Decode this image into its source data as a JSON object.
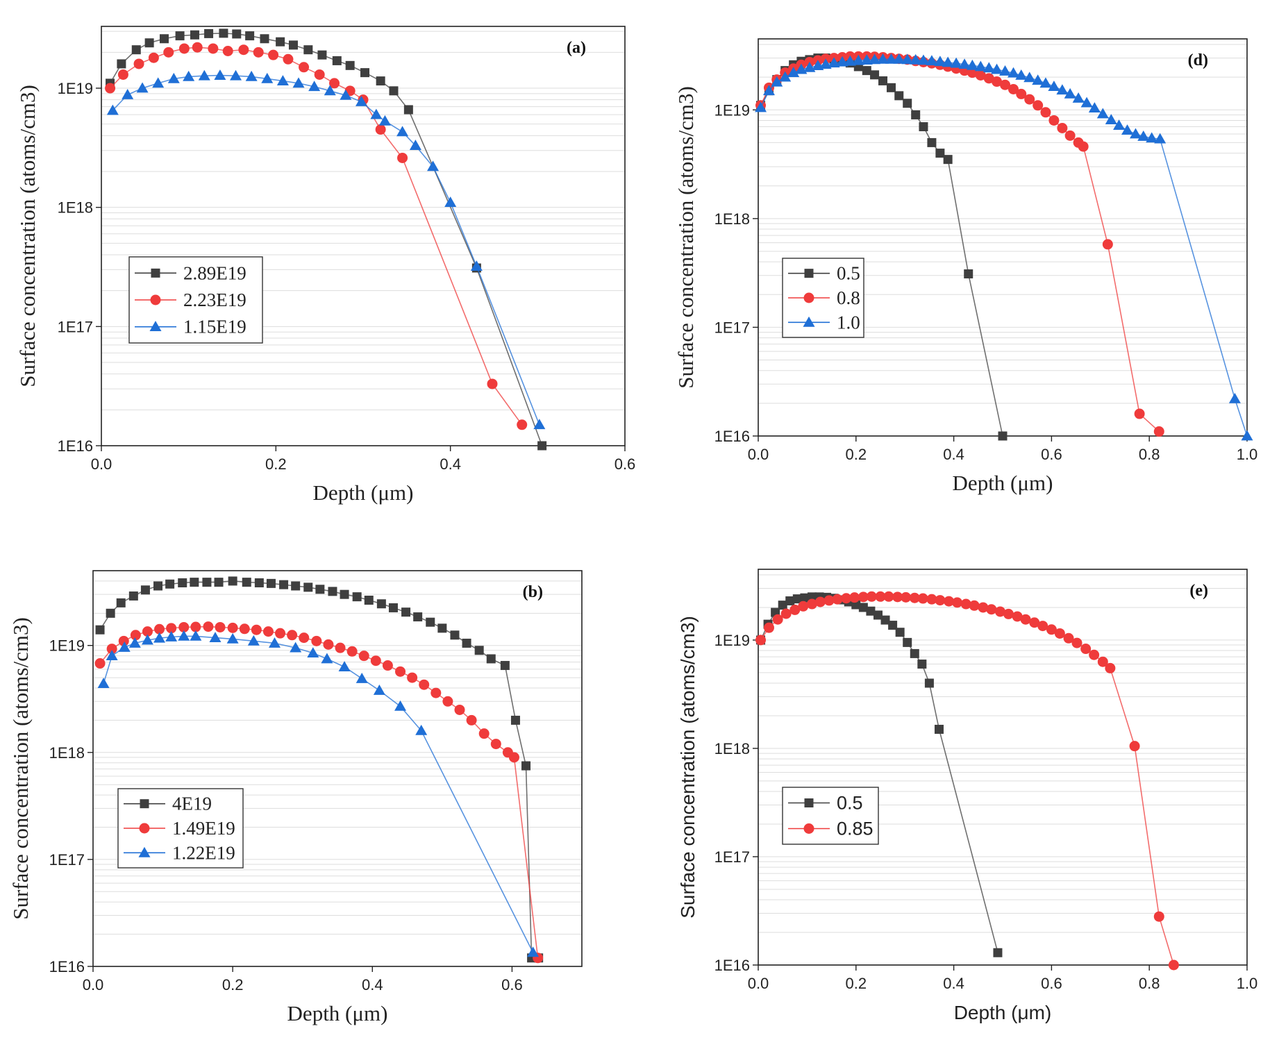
{
  "chart_data": [
    {
      "id": "a",
      "type": "line",
      "panel_label": "(a)",
      "xlabel": "Depth (μm)",
      "ylabel": "Surface concentration (atoms/cm3)",
      "xlim": [
        0.0,
        0.6
      ],
      "ylim": [
        1e+16,
        3.3e+19
      ],
      "yscale": "log",
      "xticks": [
        "0.0",
        "0.2",
        "0.4",
        "0.6"
      ],
      "yticks": [
        "1E16",
        "1E17",
        "1E18",
        "1E19"
      ],
      "legend_position": "center-left",
      "series": [
        {
          "name": "2.89E19",
          "color": "#3f3f3f",
          "marker": "square",
          "x": [
            0.01,
            0.023,
            0.04,
            0.055,
            0.072,
            0.09,
            0.107,
            0.123,
            0.14,
            0.155,
            0.17,
            0.187,
            0.205,
            0.22,
            0.237,
            0.253,
            0.27,
            0.285,
            0.302,
            0.32,
            0.335,
            0.352,
            0.43,
            0.505
          ],
          "y": [
            1.1e+19,
            1.6e+19,
            2.1e+19,
            2.4e+19,
            2.6e+19,
            2.75e+19,
            2.8e+19,
            2.87e+19,
            2.89e+19,
            2.85e+19,
            2.75e+19,
            2.6e+19,
            2.45e+19,
            2.3e+19,
            2.1e+19,
            1.9e+19,
            1.7e+19,
            1.55e+19,
            1.35e+19,
            1.15e+19,
            9.5e+18,
            6.6e+18,
            3.1e+17,
            1e+16
          ]
        },
        {
          "name": "2.23E19",
          "color": "#ef3b3b",
          "marker": "circle",
          "x": [
            0.01,
            0.025,
            0.043,
            0.06,
            0.077,
            0.095,
            0.11,
            0.128,
            0.145,
            0.163,
            0.18,
            0.197,
            0.214,
            0.232,
            0.25,
            0.267,
            0.285,
            0.3,
            0.32,
            0.345,
            0.448,
            0.482
          ],
          "y": [
            1e+19,
            1.3e+19,
            1.6e+19,
            1.8e+19,
            2e+19,
            2.15e+19,
            2.2e+19,
            2.15e+19,
            2.05e+19,
            2.1e+19,
            2e+19,
            1.9e+19,
            1.75e+19,
            1.5e+19,
            1.3e+19,
            1.1e+19,
            9.5e+18,
            8e+18,
            4.5e+18,
            2.6e+18,
            3.3e+16,
            1.5e+16
          ]
        },
        {
          "name": "1.15E19",
          "color": "#1f6fd6",
          "marker": "triangle",
          "x": [
            0.013,
            0.03,
            0.047,
            0.065,
            0.083,
            0.1,
            0.118,
            0.136,
            0.154,
            0.172,
            0.19,
            0.208,
            0.226,
            0.244,
            0.262,
            0.28,
            0.298,
            0.315,
            0.325,
            0.345,
            0.36,
            0.38,
            0.4,
            0.43,
            0.502
          ],
          "y": [
            6.5e+18,
            8.8e+18,
            1e+19,
            1.1e+19,
            1.2e+19,
            1.25e+19,
            1.27e+19,
            1.28e+19,
            1.27e+19,
            1.25e+19,
            1.2e+19,
            1.15e+19,
            1.1e+19,
            1.03e+19,
            9.5e+18,
            8.7e+18,
            7.7e+18,
            6e+18,
            5.3e+18,
            4.3e+18,
            3.3e+18,
            2.2e+18,
            1.1e+18,
            3.2e+17,
            1.5e+16
          ]
        }
      ]
    },
    {
      "id": "d",
      "type": "line",
      "panel_label": "(d)",
      "xlabel": "Depth (μm)",
      "ylabel": "Surface concentration (atoms/cm3)",
      "xlim": [
        0.0,
        1.0
      ],
      "ylim": [
        1e+16,
        4.5e+19
      ],
      "yscale": "log",
      "xticks": [
        "0.0",
        "0.2",
        "0.4",
        "0.6",
        "0.8",
        "1.0"
      ],
      "yticks": [
        "1E16",
        "1E17",
        "1E18",
        "1E19"
      ],
      "legend_position": "center-left",
      "series": [
        {
          "name": "0.5",
          "color": "#3f3f3f",
          "marker": "square",
          "x": [
            0.005,
            0.022,
            0.038,
            0.055,
            0.072,
            0.088,
            0.105,
            0.122,
            0.138,
            0.155,
            0.172,
            0.188,
            0.205,
            0.222,
            0.238,
            0.255,
            0.272,
            0.288,
            0.305,
            0.322,
            0.338,
            0.355,
            0.372,
            0.388,
            0.43,
            0.5
          ],
          "y": [
            1.1e+19,
            1.5e+19,
            1.9e+19,
            2.3e+19,
            2.6e+19,
            2.8e+19,
            2.9e+19,
            3e+19,
            3e+19,
            2.95e+19,
            2.85e+19,
            2.7e+19,
            2.5e+19,
            2.3e+19,
            2.1e+19,
            1.85e+19,
            1.6e+19,
            1.35e+19,
            1.15e+19,
            9e+18,
            7e+18,
            5e+18,
            4e+18,
            3.5e+18,
            3.1e+17,
            1e+16
          ]
        },
        {
          "name": "0.8",
          "color": "#ef3b3b",
          "marker": "circle",
          "x": [
            0.005,
            0.022,
            0.038,
            0.055,
            0.072,
            0.088,
            0.105,
            0.122,
            0.138,
            0.155,
            0.172,
            0.188,
            0.205,
            0.222,
            0.238,
            0.255,
            0.272,
            0.288,
            0.305,
            0.322,
            0.338,
            0.355,
            0.372,
            0.388,
            0.405,
            0.422,
            0.438,
            0.455,
            0.472,
            0.488,
            0.505,
            0.522,
            0.538,
            0.555,
            0.572,
            0.588,
            0.605,
            0.622,
            0.638,
            0.655,
            0.665,
            0.715,
            0.78,
            0.82
          ],
          "y": [
            1.1e+19,
            1.6e+19,
            1.9e+19,
            2.2e+19,
            2.4e+19,
            2.6e+19,
            2.75e+19,
            2.85e+19,
            2.95e+19,
            3e+19,
            3.05e+19,
            3.1e+19,
            3.1e+19,
            3.1e+19,
            3.08e+19,
            3.05e+19,
            3e+19,
            2.95e+19,
            2.9e+19,
            2.82e+19,
            2.75e+19,
            2.68e+19,
            2.6e+19,
            2.5e+19,
            2.4e+19,
            2.3e+19,
            2.2e+19,
            2.08e+19,
            1.95e+19,
            1.82e+19,
            1.7e+19,
            1.55e+19,
            1.4e+19,
            1.25e+19,
            1.1e+19,
            9.5e+18,
            8e+18,
            6.8e+18,
            5.8e+18,
            5e+18,
            4.6e+18,
            5.8e+17,
            1.6e+16,
            1.1e+16
          ]
        },
        {
          "name": "1.0",
          "color": "#1f6fd6",
          "marker": "triangle",
          "x": [
            0.005,
            0.022,
            0.038,
            0.055,
            0.072,
            0.088,
            0.105,
            0.122,
            0.138,
            0.155,
            0.172,
            0.188,
            0.205,
            0.222,
            0.238,
            0.255,
            0.272,
            0.288,
            0.305,
            0.322,
            0.338,
            0.355,
            0.372,
            0.388,
            0.405,
            0.422,
            0.438,
            0.455,
            0.472,
            0.488,
            0.505,
            0.522,
            0.538,
            0.555,
            0.572,
            0.588,
            0.605,
            0.622,
            0.638,
            0.655,
            0.672,
            0.688,
            0.705,
            0.722,
            0.738,
            0.755,
            0.772,
            0.788,
            0.805,
            0.822,
            0.975,
            1.0
          ],
          "y": [
            1.05e+19,
            1.5e+19,
            1.8e+19,
            2e+19,
            2.2e+19,
            2.35e+19,
            2.45e+19,
            2.55e+19,
            2.62e+19,
            2.7e+19,
            2.76e+19,
            2.8e+19,
            2.84e+19,
            2.87e+19,
            2.9e+19,
            2.92e+19,
            2.92e+19,
            2.92e+19,
            2.9e+19,
            2.88e+19,
            2.85e+19,
            2.82e+19,
            2.78e+19,
            2.73e+19,
            2.68e+19,
            2.62e+19,
            2.56e+19,
            2.5e+19,
            2.43e+19,
            2.35e+19,
            2.27e+19,
            2.18e+19,
            2.08e+19,
            1.98e+19,
            1.87e+19,
            1.76e+19,
            1.64e+19,
            1.52e+19,
            1.4e+19,
            1.28e+19,
            1.16e+19,
            1.04e+19,
            9.2e+18,
            8.1e+18,
            7.2e+18,
            6.5e+18,
            6e+18,
            5.7e+18,
            5.5e+18,
            5.4e+18,
            2.2e+16,
            1e+16
          ]
        }
      ]
    },
    {
      "id": "b",
      "type": "line",
      "panel_label": "(b)",
      "xlabel": "Depth (μm)",
      "ylabel": "Surface concentration (atoms/cm3)",
      "xlim": [
        0.0,
        0.7
      ],
      "ylim": [
        1e+16,
        5e+19
      ],
      "yscale": "log",
      "xticks": [
        "0.0",
        "0.2",
        "0.4",
        "0.6"
      ],
      "yticks": [
        "1E16",
        "1E17",
        "1E18",
        "1E19"
      ],
      "legend_position": "lower-left",
      "series": [
        {
          "name": "4E19",
          "color": "#3f3f3f",
          "marker": "square",
          "x": [
            0.01,
            0.025,
            0.04,
            0.058,
            0.075,
            0.093,
            0.11,
            0.128,
            0.145,
            0.163,
            0.18,
            0.2,
            0.22,
            0.238,
            0.255,
            0.273,
            0.29,
            0.308,
            0.325,
            0.343,
            0.36,
            0.378,
            0.395,
            0.413,
            0.43,
            0.448,
            0.465,
            0.483,
            0.5,
            0.518,
            0.535,
            0.553,
            0.57,
            0.59,
            0.605,
            0.62,
            0.628,
            0.638
          ],
          "y": [
            1.4e+19,
            2e+19,
            2.5e+19,
            2.9e+19,
            3.3e+19,
            3.6e+19,
            3.75e+19,
            3.85e+19,
            3.9e+19,
            3.9e+19,
            3.9e+19,
            4e+19,
            3.9e+19,
            3.85e+19,
            3.8e+19,
            3.7e+19,
            3.6e+19,
            3.5e+19,
            3.35e+19,
            3.2e+19,
            3e+19,
            2.85e+19,
            2.65e+19,
            2.45e+19,
            2.25e+19,
            2.05e+19,
            1.85e+19,
            1.65e+19,
            1.45e+19,
            1.25e+19,
            1.05e+19,
            9e+18,
            7.5e+18,
            6.5e+18,
            2e+18,
            7.5e+17,
            1.2e+16,
            1.2e+16
          ]
        },
        {
          "name": "1.49E19",
          "color": "#ef3b3b",
          "marker": "circle",
          "x": [
            0.01,
            0.027,
            0.044,
            0.061,
            0.078,
            0.095,
            0.112,
            0.13,
            0.147,
            0.165,
            0.182,
            0.2,
            0.217,
            0.234,
            0.251,
            0.268,
            0.285,
            0.302,
            0.32,
            0.337,
            0.354,
            0.371,
            0.388,
            0.405,
            0.422,
            0.44,
            0.457,
            0.474,
            0.491,
            0.508,
            0.525,
            0.542,
            0.56,
            0.577,
            0.594,
            0.603,
            0.637
          ],
          "y": [
            6.8e+18,
            9.3e+18,
            1.1e+19,
            1.25e+19,
            1.35e+19,
            1.42e+19,
            1.45e+19,
            1.48e+19,
            1.49e+19,
            1.5e+19,
            1.48e+19,
            1.46e+19,
            1.43e+19,
            1.4e+19,
            1.35e+19,
            1.3e+19,
            1.25e+19,
            1.18e+19,
            1.1e+19,
            1.02e+19,
            9.5e+18,
            8.8e+18,
            8e+18,
            7.2e+18,
            6.5e+18,
            5.7e+18,
            5e+18,
            4.3e+18,
            3.6e+18,
            3e+18,
            2.5e+18,
            2e+18,
            1.5e+18,
            1.2e+18,
            1e+18,
            9e+17,
            1.2e+16
          ]
        },
        {
          "name": "1.22E19",
          "color": "#1f6fd6",
          "marker": "triangle",
          "x": [
            0.015,
            0.027,
            0.045,
            0.06,
            0.078,
            0.095,
            0.112,
            0.13,
            0.147,
            0.175,
            0.2,
            0.23,
            0.26,
            0.29,
            0.315,
            0.335,
            0.36,
            0.385,
            0.41,
            0.44,
            0.47,
            0.63
          ],
          "y": [
            4.4e+18,
            8e+18,
            9.6e+18,
            1.05e+19,
            1.12e+19,
            1.17e+19,
            1.2e+19,
            1.22e+19,
            1.22e+19,
            1.18e+19,
            1.15e+19,
            1.1e+19,
            1.05e+19,
            9.5e+18,
            8.5e+18,
            7.5e+18,
            6.3e+18,
            4.9e+18,
            3.8e+18,
            2.7e+18,
            1.6e+18,
            1.35e+16
          ]
        }
      ]
    },
    {
      "id": "e",
      "type": "line",
      "panel_label": "(e)",
      "xlabel": "Depth (μm)",
      "ylabel": "Surface concentration (atoms/cm3)",
      "xlim": [
        0.0,
        1.0
      ],
      "ylim": [
        1e+16,
        4.5e+19
      ],
      "yscale": "log",
      "xticks": [
        "0.0",
        "0.2",
        "0.4",
        "0.6",
        "0.8",
        "1.0"
      ],
      "yticks": [
        "1E16",
        "1E17",
        "1E18",
        "1E19"
      ],
      "legend_position": "center-left",
      "series": [
        {
          "name": "0.5",
          "color": "#3f3f3f",
          "marker": "square",
          "x": [
            0.005,
            0.02,
            0.035,
            0.05,
            0.065,
            0.08,
            0.095,
            0.11,
            0.125,
            0.14,
            0.155,
            0.17,
            0.185,
            0.2,
            0.215,
            0.23,
            0.245,
            0.26,
            0.275,
            0.29,
            0.305,
            0.32,
            0.335,
            0.35,
            0.37,
            0.49
          ],
          "y": [
            1e+19,
            1.4e+19,
            1.8e+19,
            2.1e+19,
            2.3e+19,
            2.4e+19,
            2.45e+19,
            2.5e+19,
            2.5e+19,
            2.48e+19,
            2.43e+19,
            2.35e+19,
            2.25e+19,
            2.12e+19,
            2e+19,
            1.85e+19,
            1.7e+19,
            1.53e+19,
            1.37e+19,
            1.18e+19,
            9.5e+18,
            7.5e+18,
            6e+18,
            4e+18,
            1.5e+18,
            1.3e+16
          ]
        },
        {
          "name": "0.85",
          "color": "#ef3b3b",
          "marker": "circle",
          "x": [
            0.005,
            0.022,
            0.04,
            0.057,
            0.075,
            0.092,
            0.11,
            0.127,
            0.145,
            0.162,
            0.18,
            0.197,
            0.215,
            0.232,
            0.25,
            0.267,
            0.285,
            0.302,
            0.32,
            0.337,
            0.355,
            0.372,
            0.39,
            0.407,
            0.425,
            0.442,
            0.46,
            0.477,
            0.495,
            0.512,
            0.53,
            0.547,
            0.565,
            0.582,
            0.6,
            0.617,
            0.635,
            0.652,
            0.67,
            0.687,
            0.705,
            0.72,
            0.77,
            0.82,
            0.85
          ],
          "y": [
            1e+19,
            1.3e+19,
            1.55e+19,
            1.75e+19,
            1.9e+19,
            2.05e+19,
            2.15e+19,
            2.25e+19,
            2.32e+19,
            2.38e+19,
            2.43e+19,
            2.47e+19,
            2.5e+19,
            2.52e+19,
            2.52e+19,
            2.52e+19,
            2.5e+19,
            2.48e+19,
            2.45e+19,
            2.42e+19,
            2.38e+19,
            2.33e+19,
            2.28e+19,
            2.22e+19,
            2.15e+19,
            2.08e+19,
            2e+19,
            1.92e+19,
            1.83e+19,
            1.74e+19,
            1.65e+19,
            1.55e+19,
            1.45e+19,
            1.35e+19,
            1.25e+19,
            1.15e+19,
            1.04e+19,
            9.4e+18,
            8.3e+18,
            7.3e+18,
            6.3e+18,
            5.5e+18,
            1.05e+18,
            2.8e+16,
            1e+16
          ]
        }
      ]
    }
  ]
}
